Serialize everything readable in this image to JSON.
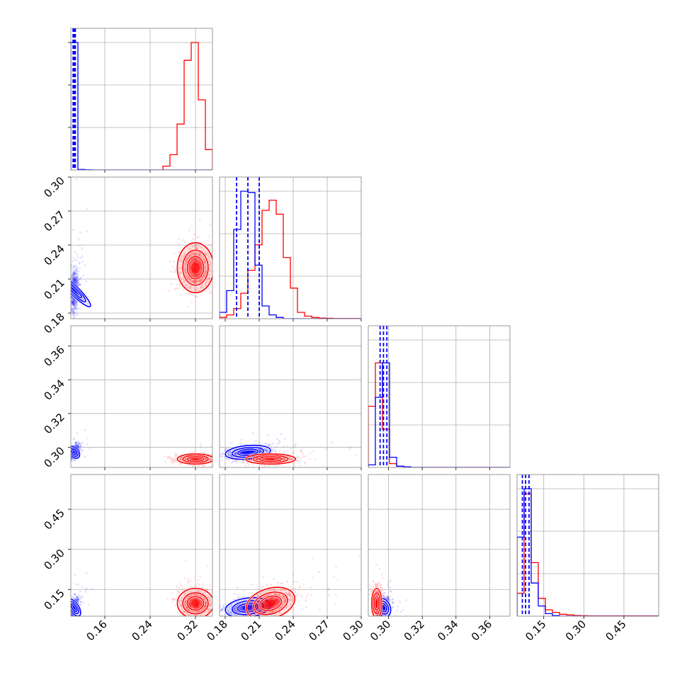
{
  "chart_data": {
    "type": "corner",
    "colors": {
      "series_a": "#0000ff",
      "series_b": "#ff0000"
    },
    "grid": true,
    "series": [
      {
        "color": "blue",
        "median": [
          0.106,
          0.2,
          0.297,
          0.082
        ],
        "q16": [
          0.104,
          0.19,
          0.295,
          0.07
        ],
        "q84": [
          0.108,
          0.21,
          0.299,
          0.095
        ]
      },
      {
        "color": "red",
        "median": [
          0.32,
          0.22,
          0.293,
          0.098
        ],
        "q16": [
          0.303,
          0.21,
          0.291,
          0.085
        ],
        "q84": [
          0.335,
          0.232,
          0.295,
          0.125
        ]
      }
    ],
    "axes": [
      {
        "range": [
          0.1,
          0.35
        ],
        "ticks": [
          "0.16",
          "0.24",
          "0.32"
        ],
        "tick_values": [
          0.16,
          0.24,
          0.32
        ]
      },
      {
        "range": [
          0.175,
          0.3
        ],
        "ticks": [
          "0.18",
          "0.21",
          "0.24",
          "0.27",
          "0.30"
        ],
        "tick_values": [
          0.18,
          0.21,
          0.24,
          0.27,
          0.3
        ]
      },
      {
        "range": [
          0.288,
          0.372
        ],
        "ticks": [
          "0.30",
          "0.32",
          "0.34",
          "0.36"
        ],
        "tick_values": [
          0.3,
          0.32,
          0.34,
          0.36
        ]
      },
      {
        "range": [
          0.05,
          0.58
        ],
        "ticks": [
          "0.15",
          "0.30",
          "0.45"
        ],
        "tick_values": [
          0.15,
          0.3,
          0.45
        ]
      }
    ],
    "histograms": [
      {
        "blue_quantiles": [
          0.104,
          0.106,
          0.108
        ],
        "blue_bins": {
          "edges": [
            0.1,
            0.1125,
            0.125,
            0.1375
          ],
          "counts": [
            1.0,
            0.004,
            0.001
          ]
        },
        "red_bins": {
          "edges": [
            0.2625,
            0.275,
            0.2875,
            0.3,
            0.3125,
            0.325,
            0.3375,
            0.35
          ],
          "counts": [
            0.03,
            0.12,
            0.36,
            0.86,
            1.0,
            0.55,
            0.16
          ]
        }
      },
      {
        "blue_quantiles": [
          0.19,
          0.2,
          0.21
        ],
        "blue_bins": {
          "edges": [
            0.175,
            0.18125,
            0.1875,
            0.19375,
            0.2,
            0.20625,
            0.2125,
            0.21875,
            0.225,
            0.23125
          ],
          "counts": [
            0.05,
            0.22,
            0.7,
            1.0,
            0.99,
            0.42,
            0.1,
            0.03,
            0.01
          ]
        },
        "red_bins": {
          "edges": [
            0.175,
            0.18125,
            0.1875,
            0.19375,
            0.2,
            0.20625,
            0.2125,
            0.21875,
            0.225,
            0.23125,
            0.2375,
            0.24375,
            0.25,
            0.25625,
            0.2625,
            0.26875,
            0.275,
            0.3
          ],
          "counts": [
            0.01,
            0.03,
            0.08,
            0.2,
            0.38,
            0.58,
            0.85,
            0.93,
            0.82,
            0.48,
            0.24,
            0.05,
            0.02,
            0.01,
            0.005,
            0.003,
            0.001
          ]
        }
      },
      {
        "blue_quantiles": [
          0.295,
          0.297,
          0.299
        ],
        "blue_bins": {
          "edges": [
            0.288,
            0.2922,
            0.2964,
            0.3006,
            0.3048,
            0.309,
            0.3132
          ],
          "counts": [
            0.02,
            0.55,
            0.82,
            0.08,
            0.01,
            0.005
          ]
        },
        "red_bins": {
          "edges": [
            0.288,
            0.2922,
            0.2964,
            0.3006,
            0.3048,
            0.309,
            0.3132
          ],
          "counts": [
            0.48,
            0.82,
            0.3,
            0.03,
            0.01,
            0.005
          ]
        }
      },
      {
        "blue_quantiles": [
          0.07,
          0.082,
          0.095
        ],
        "blue_bins": {
          "edges": [
            0.05,
            0.0765,
            0.103,
            0.1295,
            0.156,
            0.1825,
            0.209
          ],
          "counts": [
            0.62,
            1.0,
            0.26,
            0.08,
            0.02,
            0.005
          ]
        },
        "red_bins": {
          "edges": [
            0.05,
            0.0765,
            0.103,
            0.1295,
            0.156,
            0.1825,
            0.209,
            0.2355,
            0.262,
            0.2885,
            0.315,
            0.58
          ],
          "counts": [
            0.18,
            0.96,
            0.42,
            0.14,
            0.05,
            0.03,
            0.015,
            0.01,
            0.005,
            0.003,
            0.002
          ]
        }
      }
    ],
    "scatter_pairs": [
      {
        "x": 0,
        "y": 1,
        "blue": {
          "mx": 0.106,
          "my": 0.2,
          "sx": 0.004,
          "sy": 0.01,
          "rho": 0.2
        },
        "red": {
          "mx": 0.32,
          "my": 0.22,
          "sx": 0.016,
          "sy": 0.011,
          "rho": 0.0
        }
      },
      {
        "x": 0,
        "y": 2,
        "blue": {
          "mx": 0.106,
          "my": 0.297,
          "sx": 0.004,
          "sy": 0.002,
          "rho": 0.5
        },
        "red": {
          "mx": 0.32,
          "my": 0.293,
          "sx": 0.016,
          "sy": 0.0015,
          "rho": 0.0
        }
      },
      {
        "x": 1,
        "y": 2,
        "blue": {
          "mx": 0.2,
          "my": 0.297,
          "sx": 0.01,
          "sy": 0.002,
          "rho": 0.3
        },
        "red": {
          "mx": 0.22,
          "my": 0.293,
          "sx": 0.011,
          "sy": 0.0015,
          "rho": 0.0
        }
      },
      {
        "x": 0,
        "y": 3,
        "blue": {
          "mx": 0.106,
          "my": 0.082,
          "sx": 0.004,
          "sy": 0.018,
          "rho": 0.3
        },
        "red": {
          "mx": 0.32,
          "my": 0.098,
          "sx": 0.016,
          "sy": 0.028,
          "rho": 0.0
        }
      },
      {
        "x": 1,
        "y": 3,
        "blue": {
          "mx": 0.2,
          "my": 0.082,
          "sx": 0.01,
          "sy": 0.018,
          "rho": 0.3
        },
        "red": {
          "mx": 0.22,
          "my": 0.098,
          "sx": 0.011,
          "sy": 0.028,
          "rho": 0.5
        }
      },
      {
        "x": 2,
        "y": 3,
        "blue": {
          "mx": 0.297,
          "my": 0.082,
          "sx": 0.002,
          "sy": 0.018,
          "rho": 0.3
        },
        "red": {
          "mx": 0.293,
          "my": 0.098,
          "sx": 0.0015,
          "sy": 0.028,
          "rho": 0.0
        }
      }
    ]
  }
}
